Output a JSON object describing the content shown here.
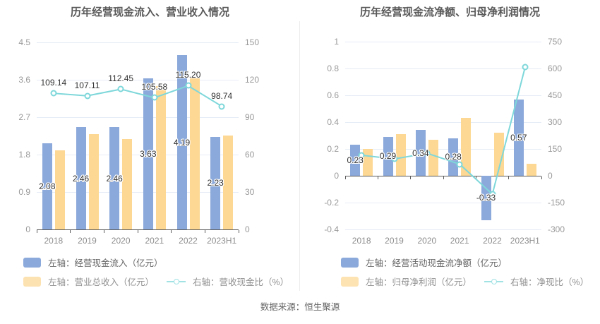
{
  "source_note": "数据来源：恒生聚源",
  "colors": {
    "bar_blue": "#8ba9da",
    "bar_orange": "#fcd894",
    "line_teal": "#7ed7da",
    "grid": "#e6ecf6",
    "axis": "#5c5c5c"
  },
  "chart_data": [
    {
      "type": "bar",
      "title": "历年经营现金流入、营业收入情况",
      "categories": [
        "2018",
        "2019",
        "2020",
        "2021",
        "2022",
        "2023H1"
      ],
      "left_axis": {
        "min": 0,
        "max": 4.5,
        "ticks": [
          4.5,
          3.6,
          2.7,
          1.8,
          0.9,
          0
        ]
      },
      "right_axis": {
        "min": 0,
        "max": 150,
        "ticks": [
          150,
          120,
          90,
          60,
          30,
          0
        ]
      },
      "grid": true,
      "legend_position": "bottom",
      "series": [
        {
          "name": "左轴：经营现金流入（亿元）",
          "type": "bar",
          "axis": "left",
          "color": "#8ba9da",
          "values": [
            2.08,
            2.46,
            2.46,
            3.63,
            4.19,
            2.23
          ],
          "show_labels": true
        },
        {
          "name": "左轴：营业总收入（亿元）",
          "type": "bar",
          "axis": "left",
          "color": "#fcd894",
          "values": [
            1.91,
            2.3,
            2.18,
            3.44,
            3.64,
            2.26
          ],
          "show_labels": false
        },
        {
          "name": "右轴：营收现金比（%）",
          "type": "line",
          "axis": "right",
          "color": "#7ed7da",
          "values": [
            109.14,
            107.11,
            112.45,
            105.58,
            115.2,
            98.74
          ],
          "show_labels": true
        }
      ]
    },
    {
      "type": "bar",
      "title": "历年经营现金流净额、归母净利润情况",
      "categories": [
        "2018",
        "2019",
        "2020",
        "2021",
        "2022",
        "2023H1"
      ],
      "left_axis": {
        "min": -0.4,
        "max": 1,
        "ticks": [
          1,
          0.8,
          0.6,
          0.4,
          0.2,
          0,
          -0.2,
          -0.4
        ]
      },
      "right_axis": {
        "min": -300,
        "max": 750,
        "ticks": [
          750,
          600,
          450,
          300,
          150,
          0,
          -150,
          -300
        ]
      },
      "grid": true,
      "legend_position": "bottom",
      "series": [
        {
          "name": "左轴：经营活动现金流净额（亿元）",
          "type": "bar",
          "axis": "left",
          "color": "#8ba9da",
          "values": [
            0.23,
            0.29,
            0.34,
            0.28,
            -0.33,
            0.57
          ],
          "show_labels": true
        },
        {
          "name": "左轴：归母净利润（亿元）",
          "type": "bar",
          "axis": "left",
          "color": "#fcd894",
          "values": [
            0.2,
            0.31,
            0.27,
            0.43,
            0.32,
            0.09
          ],
          "show_labels": false
        },
        {
          "name": "右轴：净现比（%）",
          "type": "line",
          "axis": "right",
          "color": "#7ed7da",
          "values": [
            115,
            94,
            126,
            65,
            -103,
            606
          ],
          "show_labels": false
        }
      ]
    }
  ]
}
